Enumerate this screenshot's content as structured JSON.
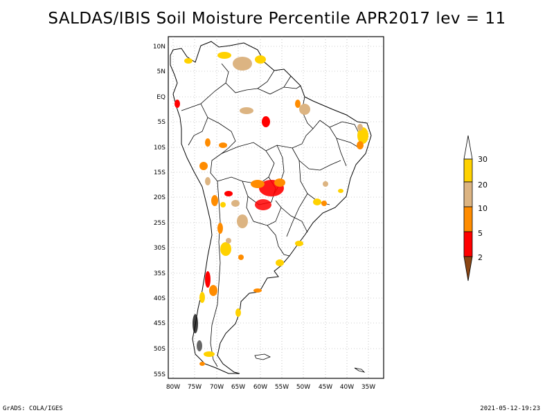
{
  "title": "SALDAS/IBIS Soil Moisture Percentile APR2017 lev = 11",
  "footer": {
    "left": "GrADS: COLA/IGES",
    "right": "2021-05-12-19:23"
  },
  "lat_ticks": [
    "10N",
    "5N",
    "EQ",
    "5S",
    "10S",
    "15S",
    "20S",
    "25S",
    "30S",
    "35S",
    "40S",
    "45S",
    "50S",
    "55S"
  ],
  "lon_ticks": [
    "80W",
    "75W",
    "70W",
    "65W",
    "60W",
    "55W",
    "50W",
    "45W",
    "40W",
    "35W"
  ],
  "legend": {
    "labels": [
      "30",
      "20",
      "10",
      "5",
      "2"
    ],
    "colors": {
      "above30": "#ffffff",
      "c20_30": "#ffd200",
      "c10_20": "#dcb482",
      "c5_10": "#ff8c00",
      "c2_5": "#ff0000",
      "below2": "#8b4513"
    }
  }
}
